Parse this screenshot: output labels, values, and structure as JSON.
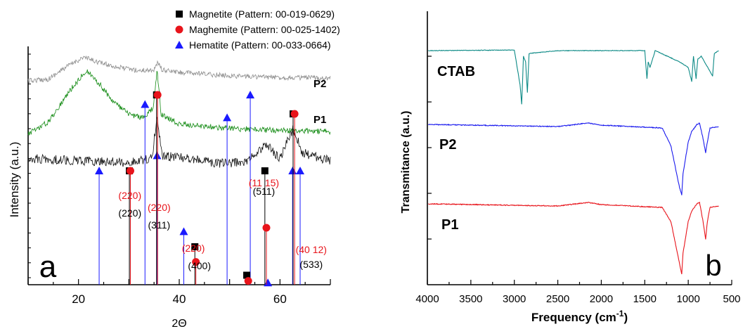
{
  "chart_data": [
    {
      "type": "line",
      "panel_label": "a",
      "xlabel": "2Θ",
      "ylabel": "Intensity (a.u.)",
      "xlim": [
        10,
        70
      ],
      "x_ticks": [
        20,
        40,
        60
      ],
      "y_ticks_shown": false,
      "grid": false,
      "legend": {
        "placement": "top",
        "entries": [
          {
            "name": "Magnetite (Pattern: 00-019-0629)",
            "marker": "square",
            "color": "#000000"
          },
          {
            "name": "Maghemite (Pattern: 00-025-1402)",
            "marker": "circle",
            "color": "#e8141b"
          },
          {
            "name": "Hematite (Pattern: 00-033-0664)",
            "marker": "triangle",
            "color": "#1a1aff"
          }
        ]
      },
      "series": [
        {
          "name": "P2",
          "color": "#8c8c8c",
          "profile": [
            [
              10,
              0.0
            ],
            [
              14,
              0.05
            ],
            [
              18,
              0.45
            ],
            [
              21,
              0.7
            ],
            [
              24,
              0.55
            ],
            [
              28,
              0.4
            ],
            [
              32,
              0.3
            ],
            [
              35,
              0.33
            ],
            [
              35.8,
              0.55
            ],
            [
              36.6,
              0.32
            ],
            [
              40,
              0.25
            ],
            [
              50,
              0.15
            ],
            [
              60,
              0.1
            ],
            [
              70,
              0.08
            ]
          ]
        },
        {
          "name": "P1",
          "color": "#128a12",
          "profile": [
            [
              10,
              0.0
            ],
            [
              14,
              0.18
            ],
            [
              18,
              0.65
            ],
            [
              21.5,
              1.0
            ],
            [
              24,
              0.8
            ],
            [
              27,
              0.5
            ],
            [
              30,
              0.3
            ],
            [
              33,
              0.25
            ],
            [
              34.8,
              0.4
            ],
            [
              35.6,
              1.0
            ],
            [
              36.4,
              0.3
            ],
            [
              40,
              0.15
            ],
            [
              50,
              0.08
            ],
            [
              60,
              0.05
            ],
            [
              70,
              0.03
            ]
          ]
        },
        {
          "name": "",
          "color": "#111111",
          "profile": [
            [
              10,
              0.2
            ],
            [
              20,
              0.15
            ],
            [
              30,
              0.12
            ],
            [
              34.6,
              0.2
            ],
            [
              35.6,
              1.0
            ],
            [
              36.6,
              0.25
            ],
            [
              43,
              0.18
            ],
            [
              48,
              0.1
            ],
            [
              53,
              0.12
            ],
            [
              57.3,
              0.45
            ],
            [
              60,
              0.2
            ],
            [
              62.6,
              0.75
            ],
            [
              64.5,
              0.3
            ],
            [
              70,
              0.15
            ]
          ]
        }
      ],
      "reference_patterns": {
        "magnetite": [
          {
            "x": 30.1,
            "rel": 0.6
          },
          {
            "x": 35.5,
            "rel": 1.0
          },
          {
            "x": 43.1,
            "rel": 0.2
          },
          {
            "x": 53.4,
            "rel": 0.05
          },
          {
            "x": 57.0,
            "rel": 0.6
          },
          {
            "x": 62.6,
            "rel": 0.9
          }
        ],
        "maghemite": [
          {
            "x": 30.3,
            "rel": 0.6
          },
          {
            "x": 35.7,
            "rel": 1.0
          },
          {
            "x": 43.3,
            "rel": 0.12
          },
          {
            "x": 53.7,
            "rel": 0.02
          },
          {
            "x": 57.3,
            "rel": 0.3
          },
          {
            "x": 62.9,
            "rel": 0.9
          }
        ],
        "hematite": [
          {
            "x": 24.1,
            "rel": 0.6
          },
          {
            "x": 33.2,
            "rel": 0.95
          },
          {
            "x": 35.6,
            "rel": 0.68
          },
          {
            "x": 40.9,
            "rel": 0.28
          },
          {
            "x": 49.5,
            "rel": 0.88
          },
          {
            "x": 54.1,
            "rel": 1.0
          },
          {
            "x": 57.6,
            "rel": 0.01
          },
          {
            "x": 62.5,
            "rel": 0.6
          },
          {
            "x": 64.0,
            "rel": 0.6
          }
        ]
      },
      "annotations": [
        {
          "text": "P2",
          "near": "P2"
        },
        {
          "text": "P1",
          "near": "P1"
        },
        {
          "text": "(220)",
          "color": "#e8141b",
          "x": 30.2
        },
        {
          "text": "(220)",
          "color": "#000000",
          "x": 30.2
        },
        {
          "text": "(220)",
          "color": "#e8141b",
          "x": 36.0
        },
        {
          "text": "(311)",
          "color": "#000000",
          "x": 36.0
        },
        {
          "text": "(220)",
          "color": "#e8141b",
          "x": 42.8
        },
        {
          "text": "(400)",
          "color": "#000000",
          "x": 44.0
        },
        {
          "text": "(11 15)",
          "color": "#e8141b",
          "x": 56.8
        },
        {
          "text": "(511)",
          "color": "#000000",
          "x": 56.8
        },
        {
          "text": "(40 12)",
          "color": "#e8141b",
          "x": 66.2
        },
        {
          "text": "(533)",
          "color": "#000000",
          "x": 66.2
        }
      ]
    },
    {
      "type": "line",
      "panel_label": "b",
      "xlabel": "Frequency (cm",
      "xlabel_sup": "-1",
      "xlabel_end": ")",
      "ylabel": "Transmitance (a.u.)",
      "xlim": [
        4000,
        500
      ],
      "x_ticks": [
        4000,
        3500,
        3000,
        2500,
        2000,
        1500,
        1000,
        500
      ],
      "y_ticks_shown": false,
      "grid": false,
      "series": [
        {
          "name": "CTAB",
          "color": "#0d8a86",
          "profile": [
            [
              3990,
              0.0
            ],
            [
              3000,
              0.01
            ],
            [
              2935,
              -0.6
            ],
            [
              2915,
              -0.95
            ],
            [
              2895,
              -0.1
            ],
            [
              2870,
              -0.2
            ],
            [
              2850,
              -0.75
            ],
            [
              2830,
              -0.05
            ],
            [
              2500,
              0.0
            ],
            [
              1500,
              0.0
            ],
            [
              1475,
              -0.5
            ],
            [
              1460,
              -0.2
            ],
            [
              1440,
              -0.3
            ],
            [
              1380,
              0.0
            ],
            [
              1100,
              -0.2
            ],
            [
              1000,
              -0.3
            ],
            [
              960,
              -0.55
            ],
            [
              940,
              -0.1
            ],
            [
              910,
              -0.5
            ],
            [
              890,
              -0.15
            ],
            [
              850,
              -0.1
            ],
            [
              720,
              -0.45
            ],
            [
              700,
              -0.05
            ],
            [
              650,
              0.0
            ]
          ]
        },
        {
          "name": "P2",
          "color": "#1a1aee",
          "profile": [
            [
              3990,
              0.0
            ],
            [
              2500,
              -0.03
            ],
            [
              2150,
              0.02
            ],
            [
              2000,
              -0.01
            ],
            [
              1500,
              -0.04
            ],
            [
              1300,
              -0.05
            ],
            [
              1200,
              -0.3
            ],
            [
              1150,
              -0.6
            ],
            [
              1100,
              -0.9
            ],
            [
              1075,
              -1.0
            ],
            [
              1060,
              -0.7
            ],
            [
              1000,
              -0.25
            ],
            [
              960,
              -0.1
            ],
            [
              900,
              0.0
            ],
            [
              870,
              0.02
            ],
            [
              830,
              -0.2
            ],
            [
              800,
              -0.4
            ],
            [
              780,
              -0.25
            ],
            [
              750,
              -0.05
            ],
            [
              650,
              -0.03
            ]
          ]
        },
        {
          "name": "P1",
          "color": "#e8141b",
          "profile": [
            [
              3990,
              0.0
            ],
            [
              2500,
              -0.03
            ],
            [
              2150,
              0.02
            ],
            [
              2000,
              -0.01
            ],
            [
              1500,
              -0.04
            ],
            [
              1300,
              -0.05
            ],
            [
              1200,
              -0.25
            ],
            [
              1150,
              -0.55
            ],
            [
              1100,
              -0.85
            ],
            [
              1075,
              -1.0
            ],
            [
              1060,
              -0.7
            ],
            [
              1000,
              -0.25
            ],
            [
              960,
              -0.1
            ],
            [
              900,
              0.0
            ],
            [
              870,
              0.02
            ],
            [
              830,
              -0.25
            ],
            [
              800,
              -0.5
            ],
            [
              780,
              -0.25
            ],
            [
              750,
              -0.05
            ],
            [
              650,
              -0.03
            ]
          ]
        }
      ]
    }
  ]
}
